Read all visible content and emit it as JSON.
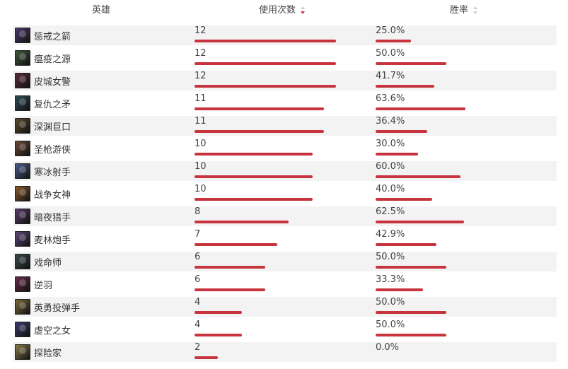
{
  "header": {
    "hero_label": "英雄",
    "uses_label": "使用次数",
    "winrate_label": "胜率"
  },
  "colors": {
    "bar": "#c8343e",
    "stripe": "#f3f3f3",
    "sort_active": "#c8343e"
  },
  "rows": [
    {
      "name": "惩戒之箭",
      "uses": "12",
      "uses_fraction": 1.0,
      "winrate": "25.0%",
      "winrate_value": 25.0,
      "avatar_color": "#4b3b6e",
      "icon": "hero-portrait"
    },
    {
      "name": "瘟疫之源",
      "uses": "12",
      "uses_fraction": 1.0,
      "winrate": "50.0%",
      "winrate_value": 50.0,
      "avatar_color": "#3f5a3a",
      "icon": "hero-portrait"
    },
    {
      "name": "皮城女警",
      "uses": "12",
      "uses_fraction": 1.0,
      "winrate": "41.7%",
      "winrate_value": 41.7,
      "avatar_color": "#5a2e3a",
      "icon": "hero-portrait"
    },
    {
      "name": "复仇之矛",
      "uses": "11",
      "uses_fraction": 0.9167,
      "winrate": "63.6%",
      "winrate_value": 63.6,
      "avatar_color": "#2f4a55",
      "icon": "hero-portrait"
    },
    {
      "name": "深渊巨口",
      "uses": "11",
      "uses_fraction": 0.9167,
      "winrate": "36.4%",
      "winrate_value": 36.4,
      "avatar_color": "#5b4a2a",
      "icon": "hero-portrait"
    },
    {
      "name": "圣枪游侠",
      "uses": "10",
      "uses_fraction": 0.8333,
      "winrate": "30.0%",
      "winrate_value": 30.0,
      "avatar_color": "#6b4a3a",
      "icon": "hero-portrait"
    },
    {
      "name": "寒冰射手",
      "uses": "10",
      "uses_fraction": 0.8333,
      "winrate": "60.0%",
      "winrate_value": 60.0,
      "avatar_color": "#4c5e8a",
      "icon": "hero-portrait"
    },
    {
      "name": "战争女神",
      "uses": "10",
      "uses_fraction": 0.8333,
      "winrate": "40.0%",
      "winrate_value": 40.0,
      "avatar_color": "#8a5a2a",
      "icon": "hero-portrait"
    },
    {
      "name": "暗夜猎手",
      "uses": "8",
      "uses_fraction": 0.6667,
      "winrate": "62.5%",
      "winrate_value": 62.5,
      "avatar_color": "#5a3a6a",
      "icon": "hero-portrait"
    },
    {
      "name": "麦林炮手",
      "uses": "7",
      "uses_fraction": 0.5833,
      "winrate": "42.9%",
      "winrate_value": 42.9,
      "avatar_color": "#5e4a7a",
      "icon": "hero-portrait"
    },
    {
      "name": "戏命师",
      "uses": "6",
      "uses_fraction": 0.5,
      "winrate": "50.0%",
      "winrate_value": 50.0,
      "avatar_color": "#3a4a4a",
      "icon": "hero-portrait"
    },
    {
      "name": "逆羽",
      "uses": "6",
      "uses_fraction": 0.5,
      "winrate": "33.3%",
      "winrate_value": 33.3,
      "avatar_color": "#6a2a4a",
      "icon": "hero-portrait"
    },
    {
      "name": "英勇投弹手",
      "uses": "4",
      "uses_fraction": 0.3333,
      "winrate": "50.0%",
      "winrate_value": 50.0,
      "avatar_color": "#7a6a3a",
      "icon": "hero-portrait"
    },
    {
      "name": "虚空之女",
      "uses": "4",
      "uses_fraction": 0.3333,
      "winrate": "50.0%",
      "winrate_value": 50.0,
      "avatar_color": "#3a3a6a",
      "icon": "hero-portrait"
    },
    {
      "name": "探险家",
      "uses": "2",
      "uses_fraction": 0.1667,
      "winrate": "0.0%",
      "winrate_value": 0.0,
      "avatar_color": "#8a7a4a",
      "icon": "hero-portrait"
    }
  ]
}
